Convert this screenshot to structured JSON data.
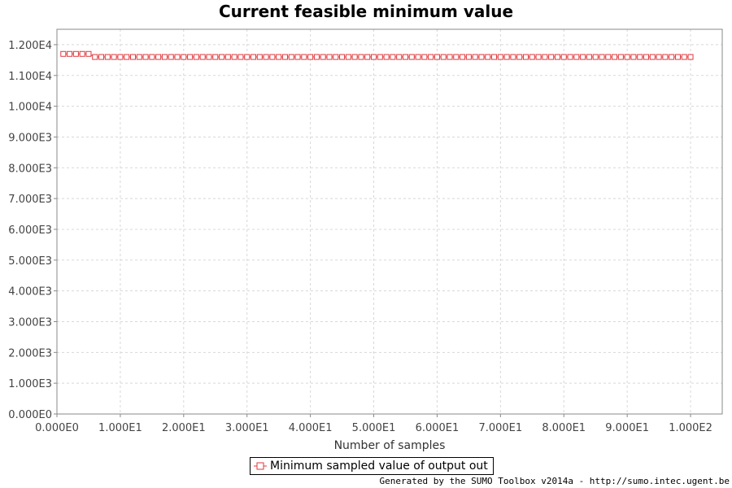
{
  "chart_data": {
    "type": "line",
    "title": "Current feasible minimum value",
    "xlabel": "Number of samples",
    "ylabel": "",
    "xlim": [
      0,
      105
    ],
    "ylim": [
      0,
      12500
    ],
    "x_ticks": [
      0,
      10,
      20,
      30,
      40,
      50,
      60,
      70,
      80,
      90,
      100
    ],
    "x_tick_labels": [
      "0.000E0",
      "1.000E1",
      "2.000E1",
      "3.000E1",
      "4.000E1",
      "5.000E1",
      "6.000E1",
      "7.000E1",
      "8.000E1",
      "9.000E1",
      "1.000E2"
    ],
    "y_ticks": [
      0,
      1000,
      2000,
      3000,
      4000,
      5000,
      6000,
      7000,
      8000,
      9000,
      10000,
      11000,
      12000
    ],
    "y_tick_labels": [
      "0.000E0",
      "1.000E3",
      "2.000E3",
      "3.000E3",
      "4.000E3",
      "5.000E3",
      "6.000E3",
      "7.000E3",
      "8.000E3",
      "9.000E3",
      "1.000E4",
      "1.100E4",
      "1.200E4"
    ],
    "grid": true,
    "legend_position": "bottom-center",
    "series": [
      {
        "name": "Minimum sampled value of output out",
        "color": "#e0383c",
        "marker": "open-square",
        "x": [
          1,
          2,
          3,
          4,
          5,
          6,
          7,
          8,
          9,
          10,
          11,
          12,
          13,
          14,
          15,
          16,
          17,
          18,
          19,
          20,
          21,
          22,
          23,
          24,
          25,
          26,
          27,
          28,
          29,
          30,
          31,
          32,
          33,
          34,
          35,
          36,
          37,
          38,
          39,
          40,
          41,
          42,
          43,
          44,
          45,
          46,
          47,
          48,
          49,
          50,
          51,
          52,
          53,
          54,
          55,
          56,
          57,
          58,
          59,
          60,
          61,
          62,
          63,
          64,
          65,
          66,
          67,
          68,
          69,
          70,
          71,
          72,
          73,
          74,
          75,
          76,
          77,
          78,
          79,
          80,
          81,
          82,
          83,
          84,
          85,
          86,
          87,
          88,
          89,
          90,
          91,
          92,
          93,
          94,
          95,
          96,
          97,
          98,
          99,
          100
        ],
        "y": [
          11700,
          11700,
          11700,
          11700,
          11700,
          11600,
          11600,
          11600,
          11600,
          11600,
          11600,
          11600,
          11600,
          11600,
          11600,
          11600,
          11600,
          11600,
          11600,
          11600,
          11600,
          11600,
          11600,
          11600,
          11600,
          11600,
          11600,
          11600,
          11600,
          11600,
          11600,
          11600,
          11600,
          11600,
          11600,
          11600,
          11600,
          11600,
          11600,
          11600,
          11600,
          11600,
          11600,
          11600,
          11600,
          11600,
          11600,
          11600,
          11600,
          11600,
          11600,
          11600,
          11600,
          11600,
          11600,
          11600,
          11600,
          11600,
          11600,
          11600,
          11600,
          11600,
          11600,
          11600,
          11600,
          11600,
          11600,
          11600,
          11600,
          11600,
          11600,
          11600,
          11600,
          11600,
          11600,
          11600,
          11600,
          11600,
          11600,
          11600,
          11600,
          11600,
          11600,
          11600,
          11600,
          11600,
          11600,
          11600,
          11600,
          11600,
          11600,
          11600,
          11600,
          11600,
          11600,
          11600,
          11600,
          11600,
          11600,
          11600
        ]
      }
    ]
  },
  "footer": "Generated by the SUMO Toolbox v2014a - http://sumo.intec.ugent.be"
}
